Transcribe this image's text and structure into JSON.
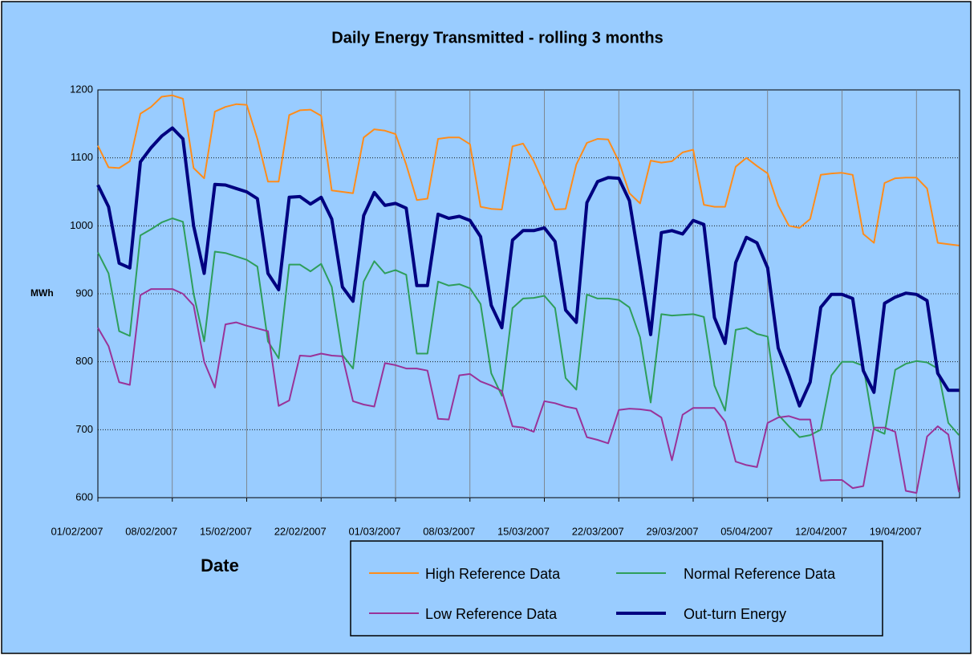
{
  "chart_data": {
    "type": "line",
    "title": "Daily Energy Transmitted - rolling 3 months",
    "y_label": "MWh",
    "x_label": "Date",
    "categories": [
      "01/02/2007",
      null,
      null,
      null,
      null,
      null,
      null,
      "08/02/2007",
      null,
      null,
      null,
      null,
      null,
      null,
      "15/02/2007",
      null,
      null,
      null,
      null,
      null,
      null,
      "22/02/2007",
      null,
      null,
      null,
      null,
      null,
      null,
      "01/03/2007",
      null,
      null,
      null,
      null,
      null,
      null,
      "08/03/2007",
      null,
      null,
      null,
      null,
      null,
      null,
      "15/03/2007",
      null,
      null,
      null,
      null,
      null,
      null,
      "22/03/2007",
      null,
      null,
      null,
      null,
      null,
      null,
      "29/03/2007",
      null,
      null,
      null,
      null,
      null,
      null,
      "05/04/2007",
      null,
      null,
      null,
      null,
      null,
      null,
      "12/04/2007",
      null,
      null,
      null,
      null,
      null,
      null,
      "19/04/2007",
      null,
      null,
      null,
      null
    ],
    "ylim": [
      600,
      1200
    ],
    "yticks": [
      600,
      700,
      800,
      900,
      1000,
      1100,
      1200
    ],
    "grid": true,
    "series": [
      {
        "name": "High Reference Data",
        "color": "#ff8c1a",
        "line_width": 2,
        "values": [
          1118,
          1086,
          1085,
          1095,
          1165,
          1175,
          1190,
          1192,
          1187,
          1085,
          1070,
          1168,
          1175,
          1179,
          1178,
          1128,
          1065,
          1065,
          1163,
          1170,
          1171,
          1162,
          1052,
          1050,
          1048,
          1130,
          1142,
          1140,
          1135,
          1090,
          1038,
          1040,
          1128,
          1130,
          1130,
          1120,
          1028,
          1025,
          1024,
          1117,
          1121,
          1095,
          1060,
          1024,
          1025,
          1090,
          1122,
          1128,
          1127,
          1095,
          1048,
          1033,
          1096,
          1093,
          1095,
          1108,
          1112,
          1031,
          1028,
          1028,
          1087,
          1100,
          1088,
          1077,
          1030,
          1000,
          997,
          1010,
          1075,
          1077,
          1078,
          1075,
          988,
          975,
          1063,
          1070,
          1071,
          1071,
          1055,
          975,
          973,
          971
        ]
      },
      {
        "name": "Normal Reference Data",
        "color": "#2e9e5b",
        "line_width": 2,
        "values": [
          961,
          930,
          845,
          838,
          986,
          995,
          1005,
          1011,
          1006,
          900,
          830,
          962,
          960,
          955,
          950,
          940,
          830,
          805,
          943,
          943,
          933,
          944,
          910,
          810,
          790,
          918,
          948,
          930,
          935,
          928,
          812,
          812,
          918,
          912,
          914,
          908,
          885,
          783,
          750,
          879,
          893,
          894,
          897,
          879,
          776,
          759,
          899,
          893,
          893,
          891,
          880,
          836,
          740,
          870,
          868,
          869,
          870,
          866,
          765,
          728,
          847,
          850,
          841,
          837,
          722,
          705,
          689,
          692,
          700,
          780,
          800,
          800,
          794,
          701,
          694,
          788,
          797,
          801,
          799,
          790,
          710,
          692
        ]
      },
      {
        "name": "Low Reference Data",
        "color": "#993399",
        "line_width": 2,
        "values": [
          850,
          823,
          770,
          766,
          898,
          907,
          907,
          907,
          900,
          883,
          800,
          762,
          855,
          858,
          853,
          849,
          845,
          735,
          743,
          809,
          808,
          812,
          809,
          808,
          742,
          737,
          734,
          798,
          795,
          790,
          790,
          787,
          716,
          715,
          780,
          782,
          771,
          765,
          757,
          705,
          703,
          697,
          742,
          739,
          734,
          731,
          689,
          685,
          680,
          729,
          731,
          730,
          728,
          718,
          655,
          722,
          732,
          732,
          732,
          712,
          653,
          648,
          645,
          710,
          718,
          720,
          715,
          715,
          625,
          626,
          626,
          614,
          617,
          703,
          703,
          697,
          610,
          607,
          690,
          705,
          693,
          608
        ]
      },
      {
        "name": "Out-turn Energy",
        "color": "#000080",
        "line_width": 4,
        "values": [
          1060,
          1028,
          945,
          938,
          1094,
          1115,
          1132,
          1144,
          1128,
          1000,
          930,
          1061,
          1060,
          1055,
          1050,
          1040,
          930,
          906,
          1042,
          1043,
          1032,
          1042,
          1010,
          910,
          889,
          1015,
          1049,
          1030,
          1033,
          1026,
          912,
          912,
          1017,
          1011,
          1014,
          1008,
          984,
          883,
          850,
          979,
          993,
          993,
          997,
          977,
          876,
          858,
          1034,
          1065,
          1071,
          1070,
          1037,
          940,
          840,
          990,
          993,
          988,
          1008,
          1002,
          865,
          827,
          946,
          983,
          975,
          938,
          820,
          780,
          735,
          770,
          880,
          899,
          899,
          893,
          787,
          755,
          886,
          895,
          901,
          899,
          890,
          783,
          758,
          758
        ]
      }
    ]
  }
}
